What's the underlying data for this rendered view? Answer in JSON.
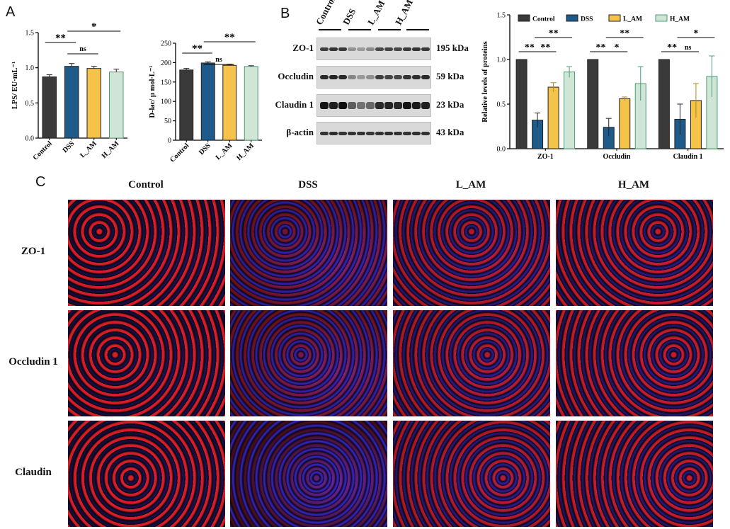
{
  "panels": {
    "a": "A",
    "b": "B",
    "c": "C"
  },
  "colors": {
    "Control": "#3a3a3a",
    "DSS": "#1f5b8a",
    "L_AM": "#f5c24a",
    "H_AM": "#cfe6d6",
    "H_AM_edge": "#4f9a75"
  },
  "chart_data": [
    {
      "type": "bar",
      "categories": [
        "Control",
        "DSS",
        "L_AM",
        "H_AM"
      ],
      "values": [
        0.87,
        1.02,
        0.99,
        0.94
      ],
      "errors": [
        0.03,
        0.04,
        0.03,
        0.04
      ],
      "ylabel": "LPS/ EU·mL⁻¹",
      "ylim": [
        0.0,
        1.5
      ],
      "yticks": [
        "0.0",
        "0.5",
        "1.0",
        "1.5"
      ],
      "significance": [
        {
          "from": "Control",
          "to": "DSS",
          "label": "**"
        },
        {
          "from": "DSS",
          "to": "L_AM",
          "label": "ns"
        },
        {
          "from": "DSS",
          "to": "H_AM",
          "label": "*"
        }
      ]
    },
    {
      "type": "bar",
      "categories": [
        "Control",
        "DSS",
        "L_AM",
        "H_AM"
      ],
      "values": [
        181,
        199,
        193,
        190
      ],
      "errors": [
        4,
        3,
        3,
        2
      ],
      "ylabel": "D-lac/ μ mol·L⁻¹",
      "ylim": [
        0,
        250
      ],
      "yticks": [
        "0",
        "50",
        "100",
        "150",
        "200",
        "250"
      ],
      "significance": [
        {
          "from": "Control",
          "to": "DSS",
          "label": "**"
        },
        {
          "from": "DSS",
          "to": "L_AM",
          "label": "ns"
        },
        {
          "from": "DSS",
          "to": "H_AM",
          "label": "**"
        }
      ]
    },
    {
      "type": "bar",
      "categories": [
        "ZO-1",
        "Occludin",
        "Claudin 1"
      ],
      "series": [
        {
          "name": "Control",
          "values": [
            1.0,
            1.0,
            1.0
          ],
          "errors": [
            0,
            0,
            0
          ]
        },
        {
          "name": "DSS",
          "values": [
            0.32,
            0.24,
            0.33
          ],
          "errors": [
            0.08,
            0.1,
            0.17
          ]
        },
        {
          "name": "L_AM",
          "values": [
            0.69,
            0.56,
            0.54
          ],
          "errors": [
            0.05,
            0.02,
            0.19
          ]
        },
        {
          "name": "H_AM",
          "values": [
            0.86,
            0.73,
            0.81
          ],
          "errors": [
            0.06,
            0.19,
            0.23
          ]
        }
      ],
      "ylabel": "Relative levels of proteins",
      "ylim": [
        0.0,
        1.5
      ],
      "yticks": [
        "0.0",
        "0.5",
        "1.0",
        "1.5"
      ],
      "legend_position": "top",
      "significance": [
        {
          "group": "ZO-1",
          "from": "Control",
          "to": "DSS",
          "label": "**"
        },
        {
          "group": "ZO-1",
          "from": "DSS",
          "to": "L_AM",
          "label": "**"
        },
        {
          "group": "ZO-1",
          "from": "DSS",
          "to": "H_AM",
          "label": "**"
        },
        {
          "group": "Occludin",
          "from": "Control",
          "to": "DSS",
          "label": "**"
        },
        {
          "group": "Occludin",
          "from": "DSS",
          "to": "L_AM",
          "label": "*"
        },
        {
          "group": "Occludin",
          "from": "DSS",
          "to": "H_AM",
          "label": "**"
        },
        {
          "group": "Claudin 1",
          "from": "Control",
          "to": "DSS",
          "label": "**"
        },
        {
          "group": "Claudin 1",
          "from": "DSS",
          "to": "L_AM",
          "label": "ns"
        },
        {
          "group": "Claudin 1",
          "from": "DSS",
          "to": "H_AM",
          "label": "*"
        }
      ]
    }
  ],
  "western_blot": {
    "lanes": [
      "Control",
      "DSS",
      "L_AM",
      "H_AM"
    ],
    "rows": [
      {
        "protein": "ZO-1",
        "kda": "195 kDa"
      },
      {
        "protein": "Occludin",
        "kda": "59 kDa"
      },
      {
        "protein": "Claudin 1",
        "kda": "23 kDa"
      },
      {
        "protein": "β-actin",
        "kda": "43 kDa"
      }
    ]
  },
  "if_grid": {
    "columns": [
      "Control",
      "DSS",
      "L_AM",
      "H_AM"
    ],
    "rows": [
      "ZO-1",
      "Occludin 1",
      "Claudin"
    ]
  }
}
